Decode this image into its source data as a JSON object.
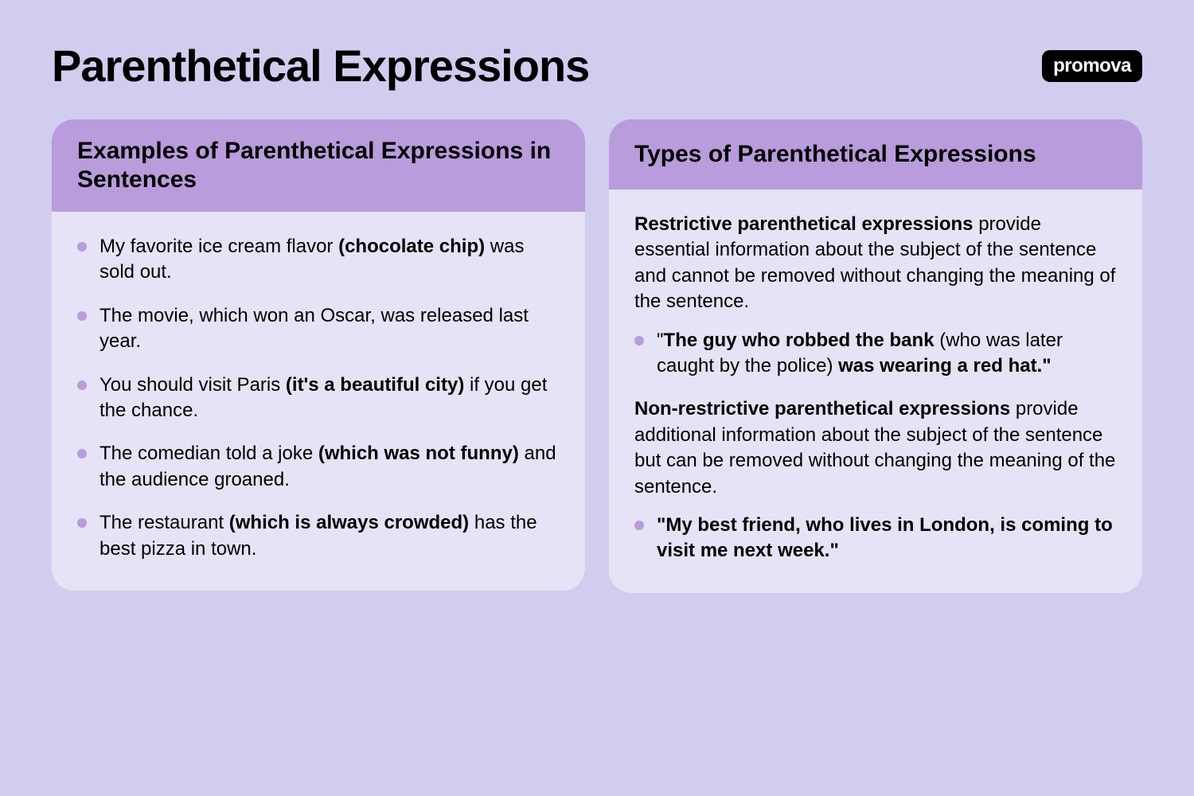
{
  "page": {
    "title": "Parenthetical Expressions",
    "logo": "promova",
    "background_color": "#d0cdef",
    "card_header_color": "#b89cdb",
    "card_body_color": "#e5e3f5",
    "bullet_color": "#b89cdb",
    "text_color": "#000000",
    "title_fontsize": 56,
    "header_fontsize": 30,
    "body_fontsize": 24
  },
  "left_card": {
    "title": "Examples of Parenthetical Expressions in Sentences",
    "examples": [
      {
        "pre": "My favorite ice cream flavor ",
        "bold": "(chocolate chip)",
        "post": " was sold out."
      },
      {
        "pre": "The movie, which won an Oscar, was released last year.",
        "bold": "",
        "post": ""
      },
      {
        "pre": "You should visit Paris ",
        "bold": "(it's a beautiful city)",
        "post": " if you get the chance."
      },
      {
        "pre": "The comedian told a joke ",
        "bold": "(which was not funny)",
        "post": " and the audience groaned."
      },
      {
        "pre": "The restaurant ",
        "bold": "(which is always crowded)",
        "post": " has the best pizza in town."
      }
    ]
  },
  "right_card": {
    "title": "Types of Parenthetical Expressions",
    "types": [
      {
        "lead_bold": "Restrictive parenthetical expressions",
        "desc_rest": " provide essential information about the subject of the sentence and cannot be removed without changing the meaning of the sentence.",
        "example_parts": {
          "open_quote": "\"",
          "bold1": "The guy who robbed the bank",
          "mid": " (who was later caught by the police) ",
          "bold2": "was wearing a red hat.\"",
          "end": ""
        }
      },
      {
        "lead_bold": "Non-restrictive parenthetical expressions",
        "desc_rest": " provide additional information about the subject of the sentence but can be removed without changing the meaning of the sentence.",
        "example_parts": {
          "open_quote": "",
          "bold1": "\"My best friend, who lives in London, is coming to visit me next week.\"",
          "mid": "",
          "bold2": "",
          "end": ""
        }
      }
    ]
  }
}
